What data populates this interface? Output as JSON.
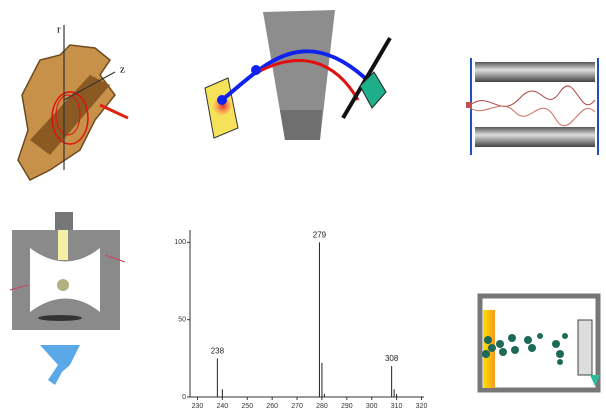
{
  "illustrations": {
    "trap_axis_labels": [
      "r",
      "z"
    ]
  },
  "chart_data": {
    "type": "stem",
    "x": [
      238,
      240,
      279,
      280,
      281,
      308,
      309,
      310
    ],
    "values": [
      25,
      5,
      100,
      22,
      2,
      20,
      5,
      2
    ],
    "peak_labels": [
      238,
      null,
      279,
      null,
      null,
      308,
      null,
      null
    ],
    "color": "#222",
    "xlim": [
      227,
      321
    ],
    "xticks": [
      230,
      240,
      250,
      260,
      270,
      280,
      290,
      300,
      310,
      320
    ],
    "ylim": [
      0,
      108
    ],
    "yticks": [
      0,
      50,
      100
    ]
  }
}
